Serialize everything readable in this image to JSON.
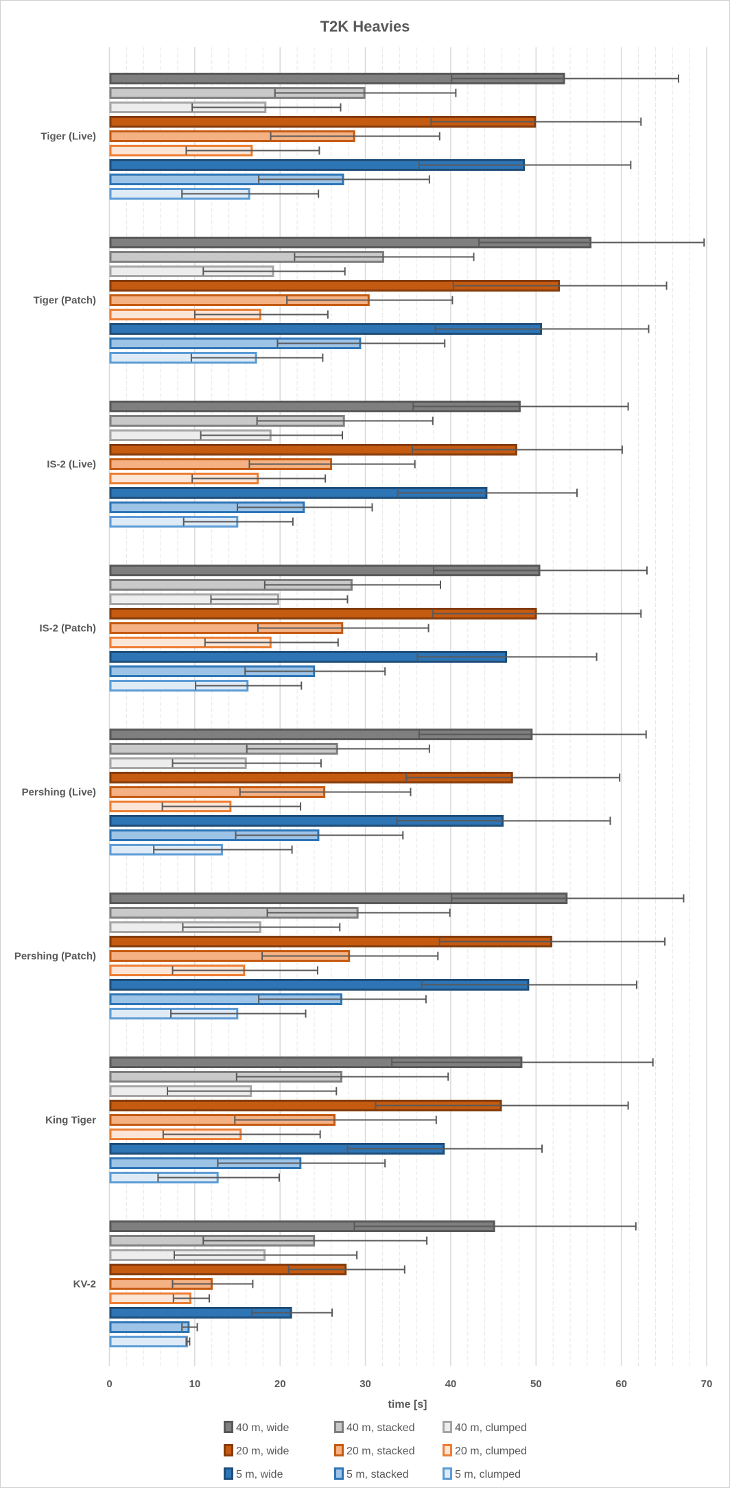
{
  "chart_data": {
    "type": "bar",
    "orientation": "horizontal",
    "title": "T2K Heavies",
    "xlabel": "time [s]",
    "ylabel": "",
    "xlim": [
      0,
      70
    ],
    "xticks": [
      "0",
      "10",
      "20",
      "30",
      "40",
      "50",
      "60",
      "70"
    ],
    "grid": "major every 10, minor every 2 (dashed)",
    "legend_position": "bottom",
    "error_bars": "symmetric (±)",
    "categories": [
      "Tiger (Live)",
      "Tiger (Patch)",
      "IS-2 (Live)",
      "IS-2 (Patch)",
      "Pershing (Live)",
      "Pershing (Patch)",
      "King Tiger",
      "KV-2"
    ],
    "series": [
      {
        "name": "40 m, wide",
        "fill": "#7f7f7f",
        "stroke": "#595959",
        "values": [
          53.4,
          56.5,
          48.2,
          50.5,
          49.6,
          53.7,
          48.4,
          45.2
        ],
        "errors": [
          13.3,
          13.2,
          12.6,
          12.5,
          13.3,
          13.6,
          15.3,
          16.5
        ]
      },
      {
        "name": "40 m, stacked",
        "fill": "#c9c9c9",
        "stroke": "#7f7f7f",
        "values": [
          30.0,
          32.2,
          27.6,
          28.5,
          26.8,
          29.2,
          27.3,
          24.1
        ],
        "errors": [
          10.6,
          10.5,
          10.3,
          10.3,
          10.7,
          10.7,
          12.4,
          13.1
        ]
      },
      {
        "name": "40 m, clumped",
        "fill": "#ededed",
        "stroke": "#a5a5a5",
        "values": [
          18.4,
          19.3,
          19.0,
          19.9,
          16.1,
          17.8,
          16.7,
          18.3
        ],
        "errors": [
          8.7,
          8.3,
          8.3,
          8.0,
          8.7,
          9.2,
          9.9,
          10.7
        ]
      },
      {
        "name": "20 m, wide",
        "fill": "#c55a11",
        "stroke": "#843c0c",
        "values": [
          50.0,
          52.8,
          47.8,
          50.1,
          47.3,
          51.9,
          46.0,
          27.8
        ],
        "errors": [
          12.3,
          12.5,
          12.3,
          12.2,
          12.5,
          13.2,
          14.8,
          6.8
        ]
      },
      {
        "name": "20 m, stacked",
        "fill": "#f4b183",
        "stroke": "#c55a11",
        "values": [
          28.8,
          30.5,
          26.1,
          27.4,
          25.3,
          28.2,
          26.5,
          12.1
        ],
        "errors": [
          9.9,
          9.7,
          9.7,
          10.0,
          10.0,
          10.3,
          11.8,
          4.7
        ]
      },
      {
        "name": "20 m, clumped",
        "fill": "#fbe5d6",
        "stroke": "#ed7d31",
        "values": [
          16.8,
          17.8,
          17.5,
          19.0,
          14.3,
          15.9,
          15.5,
          9.6
        ],
        "errors": [
          7.8,
          7.8,
          7.8,
          7.8,
          8.1,
          8.5,
          9.2,
          2.1
        ]
      },
      {
        "name": "5 m, wide",
        "fill": "#2e75b6",
        "stroke": "#1f4e79",
        "values": [
          48.7,
          50.7,
          44.3,
          46.6,
          46.2,
          49.2,
          39.3,
          21.4
        ],
        "errors": [
          12.4,
          12.5,
          10.5,
          10.5,
          12.5,
          12.6,
          11.4,
          4.7
        ]
      },
      {
        "name": "5 m, stacked",
        "fill": "#9dc3e6",
        "stroke": "#2e75b6",
        "values": [
          27.5,
          29.5,
          22.9,
          24.1,
          24.6,
          27.3,
          22.5,
          9.4
        ],
        "errors": [
          10.0,
          9.8,
          7.9,
          8.2,
          9.8,
          9.8,
          9.8,
          0.9
        ]
      },
      {
        "name": "5 m, clumped",
        "fill": "#deebf7",
        "stroke": "#5b9bd5",
        "values": [
          16.5,
          17.3,
          15.1,
          16.3,
          13.3,
          15.1,
          12.8,
          9.2
        ],
        "errors": [
          8.0,
          7.7,
          6.4,
          6.2,
          8.1,
          7.9,
          7.1,
          0.2
        ]
      }
    ],
    "error_bar_color": "#595959",
    "text_color": "#595959"
  }
}
